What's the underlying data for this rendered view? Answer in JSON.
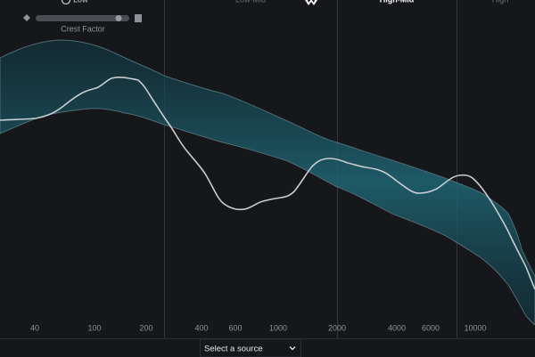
{
  "header": {
    "bands": [
      "Low",
      "Low-Mid",
      "High-Mid",
      "High"
    ]
  },
  "crest_factor": {
    "label": "Crest Factor"
  },
  "frequency_labels": [
    40,
    100,
    200,
    400,
    600,
    1000,
    2000,
    4000,
    6000,
    10000
  ],
  "source_select": {
    "label": "Select a source"
  }
}
